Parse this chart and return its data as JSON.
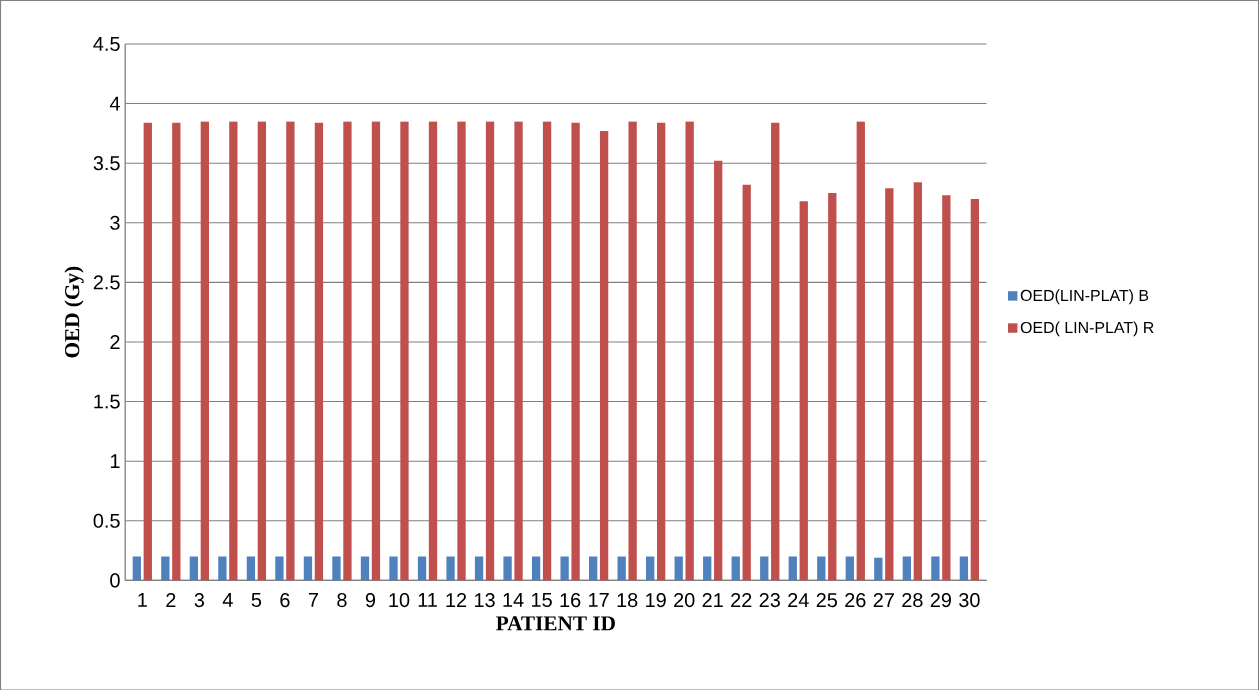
{
  "chart_data": {
    "type": "bar",
    "xlabel": "PATIENT ID",
    "ylabel": "OED (Gy)",
    "categories": [
      "1",
      "2",
      "3",
      "4",
      "5",
      "6",
      "7",
      "8",
      "9",
      "10",
      "11",
      "12",
      "13",
      "14",
      "15",
      "16",
      "17",
      "18",
      "19",
      "20",
      "21",
      "22",
      "23",
      "24",
      "25",
      "26",
      "27",
      "28",
      "29",
      "30"
    ],
    "series": [
      {
        "name": "OED(LIN-PLAT) B",
        "color": "#4f81bd",
        "values": [
          0.2,
          0.2,
          0.2,
          0.2,
          0.2,
          0.2,
          0.2,
          0.2,
          0.2,
          0.2,
          0.2,
          0.2,
          0.2,
          0.2,
          0.2,
          0.2,
          0.2,
          0.2,
          0.2,
          0.2,
          0.2,
          0.2,
          0.2,
          0.2,
          0.2,
          0.2,
          0.19,
          0.2,
          0.2,
          0.2
        ]
      },
      {
        "name": "OED( LIN-PLAT) R",
        "color": "#c0504d",
        "values": [
          3.84,
          3.84,
          3.85,
          3.85,
          3.85,
          3.85,
          3.84,
          3.85,
          3.85,
          3.85,
          3.85,
          3.85,
          3.85,
          3.85,
          3.85,
          3.84,
          3.77,
          3.85,
          3.84,
          3.85,
          3.52,
          3.32,
          3.84,
          3.18,
          3.25,
          3.85,
          3.29,
          3.34,
          3.23,
          3.2
        ]
      }
    ],
    "ylim": [
      0,
      4.5
    ],
    "yticks": [
      0,
      0.5,
      1,
      1.5,
      2,
      2.5,
      3,
      3.5,
      4,
      4.5
    ],
    "grid": "y",
    "legend": "right"
  }
}
